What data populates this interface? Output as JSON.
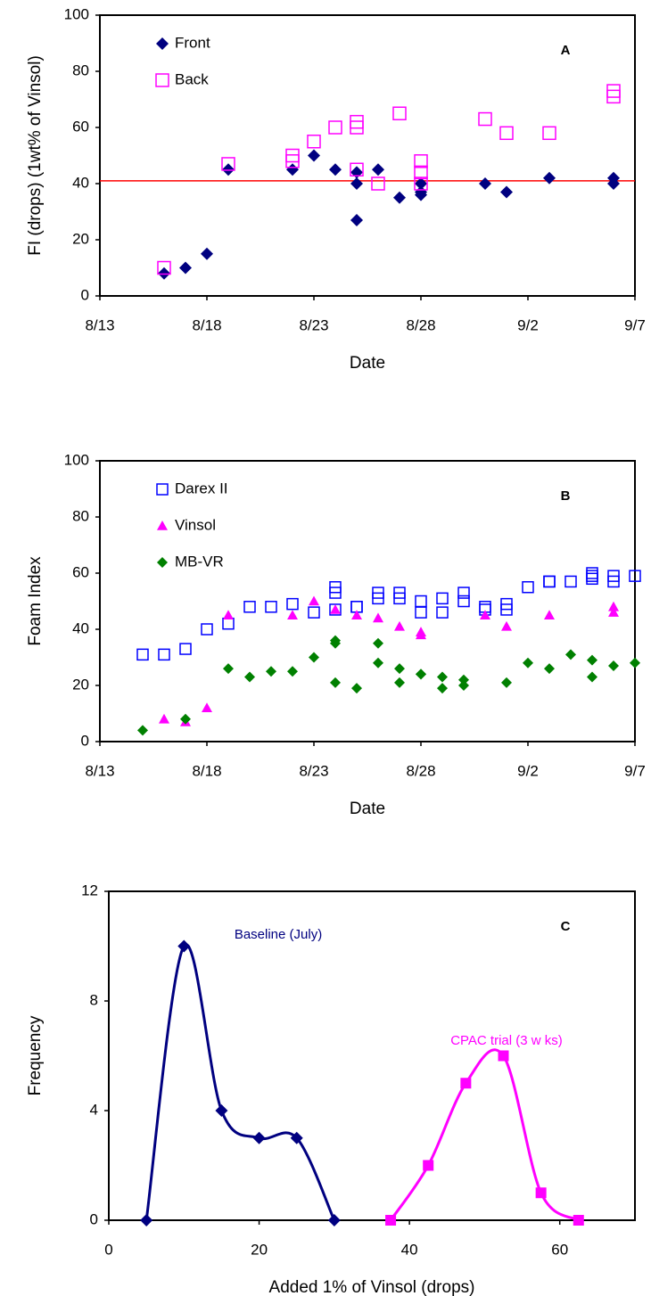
{
  "chart_data": [
    {
      "type": "scatter",
      "label": "A",
      "ylabel": "FI (drops) (1wt% of Vinsol)",
      "xlabel": "Date",
      "xlim": [
        "8/13",
        "9/7"
      ],
      "xticks": [
        "8/13",
        "8/18",
        "8/23",
        "8/28",
        "9/2",
        "9/7"
      ],
      "ylim": [
        0,
        100
      ],
      "yticks": [
        0,
        20,
        40,
        60,
        80,
        100
      ],
      "legend": "upper left",
      "hline": {
        "value": 41,
        "color": "#ff0000"
      },
      "series": [
        {
          "name": "Front",
          "color": "#000080",
          "marker": "diamond",
          "x": [
            "8/16",
            "8/17",
            "8/18",
            "8/19",
            "8/22",
            "8/23",
            "8/24",
            "8/25",
            "8/25",
            "8/25",
            "8/26",
            "8/27",
            "8/28",
            "8/28",
            "8/28",
            "8/31",
            "9/1",
            "9/3",
            "9/6",
            "9/6"
          ],
          "values": [
            8,
            10,
            15,
            45,
            45,
            50,
            45,
            40,
            44,
            27,
            45,
            35,
            36,
            40,
            37,
            40,
            37,
            42,
            42,
            40
          ]
        },
        {
          "name": "Back",
          "color": "#ff00ff",
          "marker": "square-open",
          "x": [
            "8/16",
            "8/19",
            "8/22",
            "8/22",
            "8/23",
            "8/24",
            "8/25",
            "8/25",
            "8/25",
            "8/26",
            "8/27",
            "8/28",
            "8/28",
            "8/28",
            "8/31",
            "9/1",
            "9/3",
            "9/6",
            "9/6"
          ],
          "values": [
            10,
            47,
            50,
            48,
            55,
            60,
            62,
            60,
            45,
            40,
            65,
            48,
            40,
            44,
            63,
            58,
            58,
            73,
            71
          ]
        }
      ]
    },
    {
      "type": "scatter",
      "label": "B",
      "ylabel": "Foam Index",
      "xlabel": "Date",
      "xlim": [
        "8/13",
        "9/7"
      ],
      "xticks": [
        "8/13",
        "8/18",
        "8/23",
        "8/28",
        "9/2",
        "9/7"
      ],
      "ylim": [
        0,
        100
      ],
      "yticks": [
        0,
        20,
        40,
        60,
        80,
        100
      ],
      "legend": "upper left",
      "series": [
        {
          "name": "Darex II",
          "color": "#0000ff",
          "marker": "square-open",
          "x": [
            "8/15",
            "8/16",
            "8/17",
            "8/18",
            "8/19",
            "8/20",
            "8/21",
            "8/22",
            "8/23",
            "8/24",
            "8/24",
            "8/24",
            "8/25",
            "8/25",
            "8/26",
            "8/26",
            "8/27",
            "8/27",
            "8/28",
            "8/28",
            "8/29",
            "8/29",
            "8/30",
            "8/30",
            "8/31",
            "8/31",
            "9/1",
            "9/1",
            "9/2",
            "9/3",
            "9/3",
            "9/4",
            "9/5",
            "9/5",
            "9/5",
            "9/6",
            "9/6",
            "9/7"
          ],
          "values": [
            31,
            31,
            33,
            40,
            42,
            48,
            48,
            49,
            46,
            55,
            47,
            53,
            48,
            48,
            51,
            53,
            53,
            51,
            50,
            46,
            46,
            51,
            53,
            50,
            47,
            48,
            49,
            47,
            55,
            57,
            57,
            57,
            58,
            60,
            59,
            57,
            59,
            59
          ]
        },
        {
          "name": "Vinsol",
          "color": "#ff00ff",
          "marker": "triangle",
          "x": [
            "8/16",
            "8/17",
            "8/18",
            "8/19",
            "8/22",
            "8/23",
            "8/24",
            "8/25",
            "8/26",
            "8/27",
            "8/28",
            "8/28",
            "8/31",
            "9/1",
            "9/3",
            "9/6",
            "9/6"
          ],
          "values": [
            8,
            7,
            12,
            45,
            45,
            50,
            47,
            45,
            44,
            41,
            39,
            38,
            45,
            41,
            45,
            48,
            46
          ]
        },
        {
          "name": "MB-VR",
          "color": "#008000",
          "marker": "diamond",
          "x": [
            "8/15",
            "8/17",
            "8/19",
            "8/20",
            "8/21",
            "8/22",
            "8/23",
            "8/24",
            "8/24",
            "8/24",
            "8/25",
            "8/26",
            "8/26",
            "8/27",
            "8/27",
            "8/28",
            "8/28",
            "8/29",
            "8/29",
            "8/30",
            "8/30",
            "9/1",
            "9/2",
            "9/3",
            "9/4",
            "9/5",
            "9/5",
            "9/6",
            "9/7"
          ],
          "values": [
            4,
            8,
            26,
            23,
            25,
            25,
            30,
            35,
            36,
            21,
            19,
            28,
            35,
            26,
            21,
            24,
            24,
            19,
            23,
            22,
            20,
            21,
            28,
            26,
            31,
            23,
            29,
            27,
            28
          ]
        }
      ]
    },
    {
      "type": "line",
      "label": "C",
      "ylabel": "Frequency",
      "xlabel": "Added 1% of Vinsol (drops)",
      "xlim": [
        0,
        70
      ],
      "xticks": [
        0,
        20,
        40,
        60
      ],
      "ylim": [
        0,
        12
      ],
      "yticks": [
        0,
        4,
        8,
        12
      ],
      "legend": "inline",
      "smooth": true,
      "series": [
        {
          "name": "Baseline (July)",
          "color": "#000080",
          "marker": "diamond",
          "x": [
            5,
            10,
            15,
            20,
            25,
            30
          ],
          "values": [
            0,
            10,
            4,
            3,
            3,
            0
          ]
        },
        {
          "name": "CPAC trial (3 w ks)",
          "color": "#ff00ff",
          "marker": "square",
          "x": [
            37.5,
            42.5,
            47.5,
            52.5,
            57.5,
            62.5
          ],
          "values": [
            0,
            2,
            5,
            6,
            1,
            0
          ]
        }
      ]
    }
  ]
}
